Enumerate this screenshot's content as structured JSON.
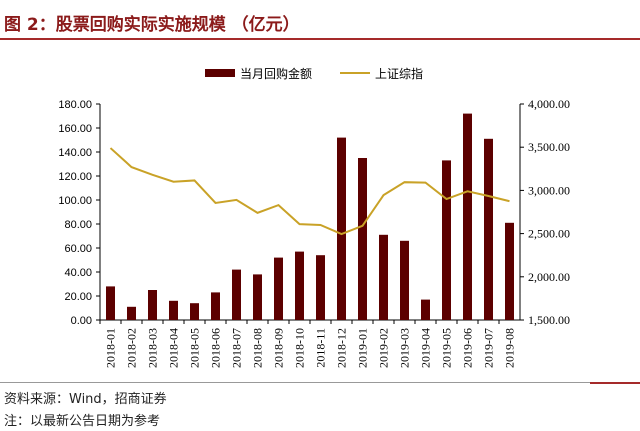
{
  "title": "图 2：股票回购实际实施规模 （亿元）",
  "source": "资料来源：Wind，招商证券",
  "note": "注：以最新公告日期为参考",
  "chart_data": {
    "type": "bar+line",
    "categories": [
      "2018-01",
      "2018-02",
      "2018-03",
      "2018-04",
      "2018-05",
      "2018-06",
      "2018-07",
      "2018-08",
      "2018-09",
      "2018-10",
      "2018-11",
      "2018-12",
      "2019-01",
      "2019-02",
      "2019-03",
      "2019-04",
      "2019-05",
      "2019-06",
      "2019-07",
      "2019-08"
    ],
    "series": [
      {
        "name": "当月回购金额",
        "type": "bar",
        "axis": "left",
        "color": "#5c0000",
        "values": [
          28,
          11,
          25,
          16,
          14,
          23,
          42,
          38,
          52,
          57,
          54,
          152,
          135,
          71,
          66,
          17,
          133,
          172,
          151,
          81
        ]
      },
      {
        "name": "上证综指",
        "type": "line",
        "axis": "right",
        "color": "#c9a227",
        "values": [
          3490,
          3270,
          3180,
          3100,
          3115,
          2855,
          2890,
          2740,
          2830,
          2610,
          2600,
          2495,
          2590,
          2945,
          3095,
          3090,
          2900,
          2990,
          2935,
          2875
        ]
      }
    ],
    "left_axis": {
      "ylim": [
        0,
        180
      ],
      "ticks": [
        "0.00",
        "20.00",
        "40.00",
        "60.00",
        "80.00",
        "100.00",
        "120.00",
        "140.00",
        "160.00",
        "180.00"
      ]
    },
    "right_axis": {
      "ylim": [
        1500,
        4000
      ],
      "ticks": [
        "1,500.00",
        "2,000.00",
        "2,500.00",
        "3,000.00",
        "3,500.00",
        "4,000.00"
      ]
    },
    "legend": "top-center",
    "grid": false
  }
}
